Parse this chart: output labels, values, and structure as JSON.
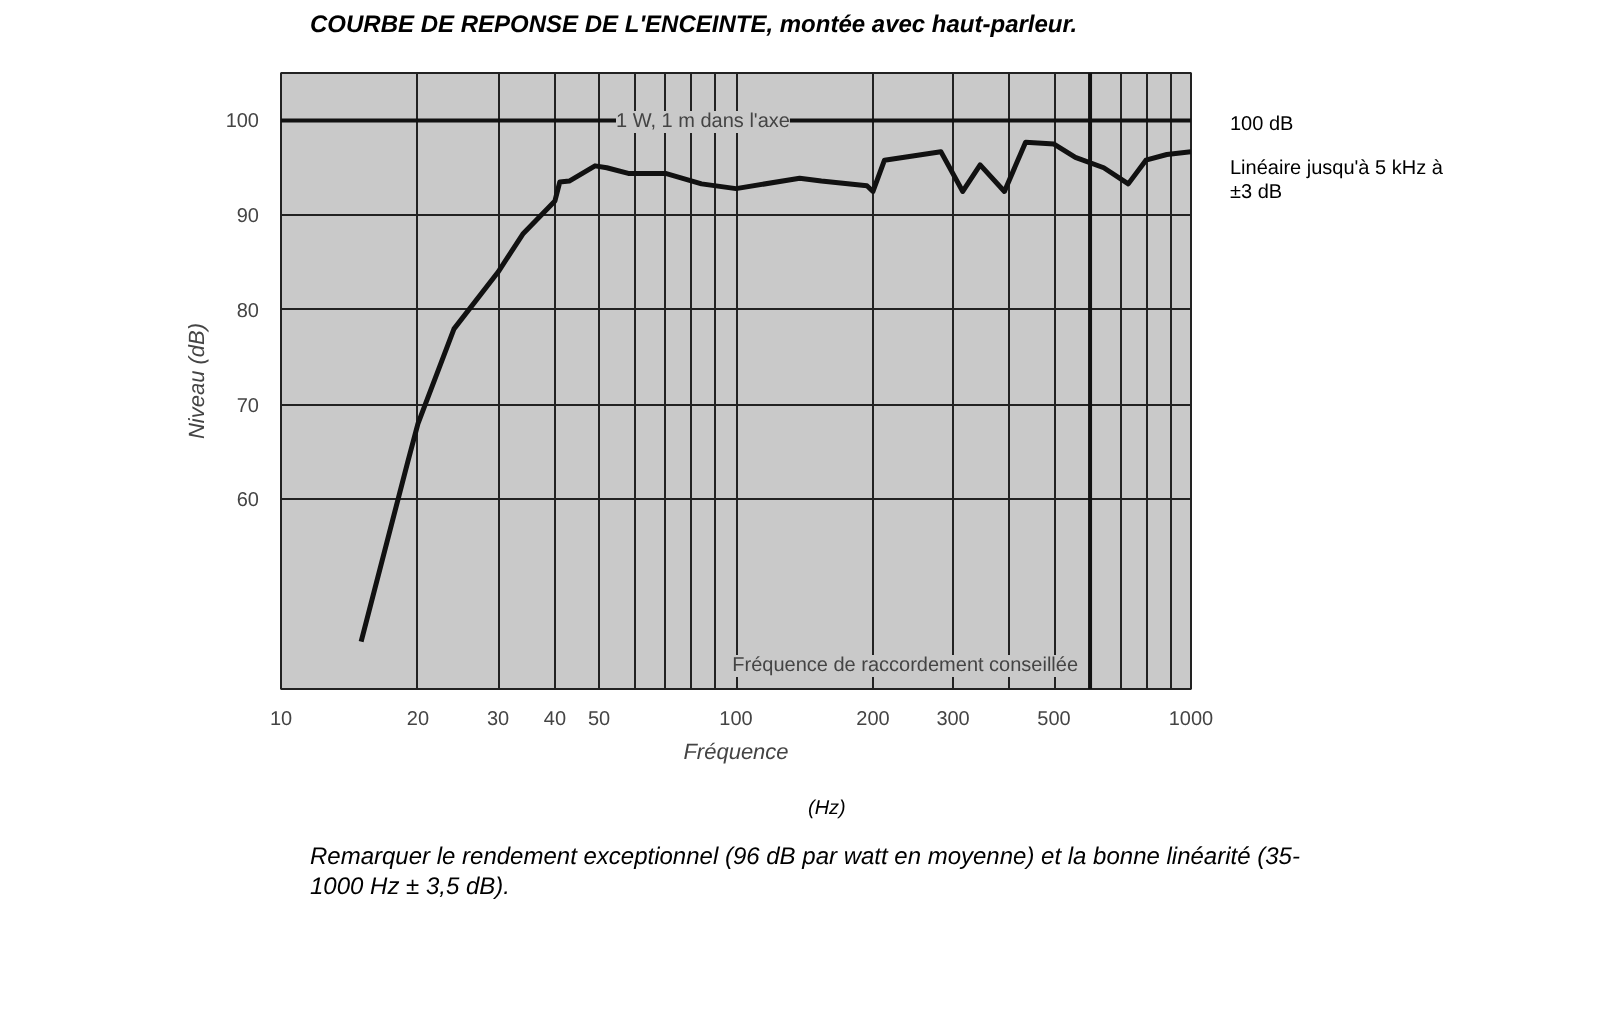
{
  "chart_data": {
    "type": "line",
    "title": "COURBE DE REPONSE DE L'ENCEINTE, montée avec haut-parleur.",
    "xlabel": "Fréquence",
    "ylabel": "Niveau (dB)",
    "log": "x",
    "grid": true,
    "marker": "none",
    "line_style": "solid",
    "x": [
      15,
      19,
      20,
      24,
      30,
      34,
      40,
      41,
      43,
      49,
      52,
      58,
      70,
      84,
      100,
      138,
      154,
      194,
      200,
      212,
      282,
      315,
      344,
      389,
      433,
      500,
      557,
      643,
      728,
      796,
      885,
      1000
    ],
    "series": [
      {
        "color": "#111111",
        "values": [
          45,
          64,
          68,
          78,
          84,
          88,
          91.5,
          93.5,
          93.6,
          95.2,
          95,
          94.4,
          94.4,
          93.3,
          92.8,
          93.9,
          93.6,
          93.1,
          92.5,
          95.8,
          96.7,
          92.5,
          95.3,
          92.5,
          97.7,
          97.5,
          96.1,
          95,
          93.3,
          95.8,
          96.4,
          96.7
        ]
      }
    ],
    "xlim": [
      10,
      1000
    ],
    "ylim": [
      40,
      105
    ],
    "xticks": [
      10,
      20,
      30,
      40,
      50,
      {
        "value": 60,
        "label": null
      },
      {
        "value": 70,
        "label": null
      },
      {
        "value": 80,
        "label": null
      },
      {
        "value": 90,
        "label": null
      },
      100,
      200,
      300,
      {
        "value": 400,
        "label": null
      },
      500,
      {
        "value": 700,
        "label": null
      },
      {
        "value": 800,
        "label": null
      },
      {
        "value": 900,
        "label": null
      },
      1000
    ],
    "yticks": [
      60,
      70,
      80,
      90,
      100
    ],
    "ref_lines": [
      {
        "axis": "x",
        "value": 600,
        "label": "Fréquence de raccordement conseillée"
      },
      {
        "axis": "y",
        "value": 100,
        "label": "100 dB"
      }
    ],
    "annotations": [
      "1 W, 1 m dans l'axe",
      "Linéaire jusqu'à 5 kHz à ±3 dB",
      "(Hz)",
      "Remarquer le rendement exceptionnel (96 dB par watt en moyenne) et la bonne linéarité (35-1000 Hz ± 3,5 dB)."
    ]
  }
}
